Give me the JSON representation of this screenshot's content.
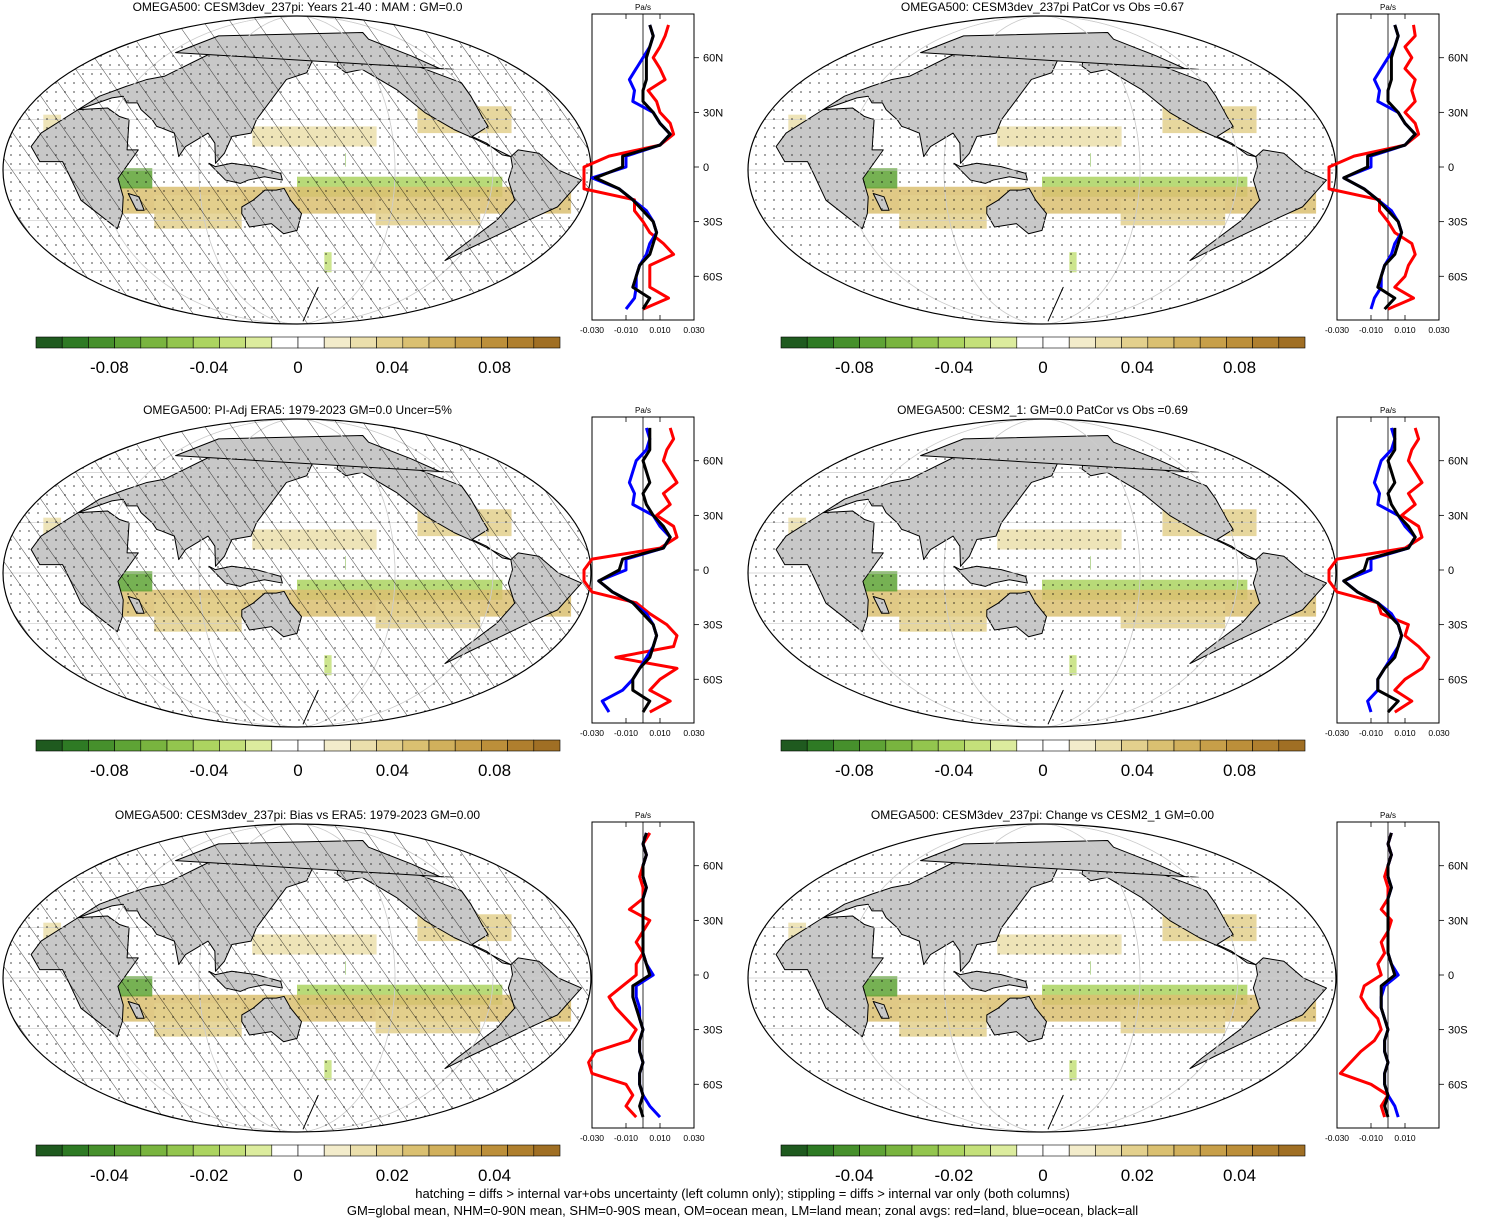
{
  "colors": {
    "land": "#c8c8c8",
    "ocean": "#ffffff",
    "zonal_land": "#ff0000",
    "zonal_ocean": "#0000ff",
    "zonal_all": "#000000",
    "scale_main": [
      "#1f5a1f",
      "#2e7a24",
      "#46902c",
      "#5ea335",
      "#79b43f",
      "#93c54e",
      "#acd460",
      "#c4e07a",
      "#dcec9e",
      "#ffffff",
      "#ffffff",
      "#f3eccb",
      "#ebdfac",
      "#e3d08d",
      "#dac071",
      "#d1b05c",
      "#c79f49",
      "#bc8f3a",
      "#af7f2e",
      "#a06f24"
    ]
  },
  "footer": {
    "line1": "hatching = diffs > internal var+obs uncertainty (left column only); stippling = diffs > internal var only (both columns)",
    "line2": "GM=global mean, NHM=0-90N mean, SHM=0-90S mean, OM=ocean mean, LM=land mean; zonal avgs: red=land, blue=ocean, black=all"
  },
  "zonal_unit": "Pa/s",
  "lat_ticks": [
    "60N",
    "30N",
    "0",
    "30S",
    "60S"
  ],
  "chart_data": [
    {
      "type": "heatmap",
      "title": "OMEGA500: CESM3dev_237pi: Years 21-40 : MAM : GM=0.0",
      "colorbar_labels": [
        "-0.08",
        "-0.04",
        "0",
        "0.04",
        "0.08"
      ],
      "zonal_x_labels": [
        "-0.030",
        "-0.010",
        "0.010",
        "0.030"
      ],
      "hatched": true,
      "zonal": {
        "lat": [
          -78,
          -72,
          -66,
          -60,
          -54,
          -48,
          -42,
          -36,
          -30,
          -24,
          -18,
          -12,
          -6,
          0,
          6,
          12,
          18,
          24,
          30,
          36,
          42,
          48,
          54,
          60,
          66,
          72,
          78
        ],
        "land": [
          0.0,
          0.015,
          0.004,
          0.004,
          0.004,
          0.018,
          0.012,
          0.004,
          0.0,
          -0.005,
          -0.005,
          -0.045,
          -0.052,
          -0.04,
          -0.02,
          0.01,
          0.018,
          0.016,
          0.01,
          0.008,
          0.003,
          0.013,
          0.01,
          0.006,
          0.01,
          0.013,
          0.015
        ],
        "ocean": [
          -0.01,
          -0.005,
          -0.004,
          -0.004,
          -0.002,
          0.002,
          0.004,
          0.008,
          0.006,
          0.002,
          -0.006,
          -0.014,
          -0.03,
          -0.01,
          -0.01,
          0.01,
          0.016,
          0.01,
          0.006,
          -0.006,
          -0.005,
          -0.008,
          -0.004,
          0.0,
          0.004,
          0.006,
          0.004
        ],
        "all": [
          0.0,
          0.004,
          -0.006,
          -0.004,
          -0.002,
          0.004,
          0.006,
          0.008,
          0.006,
          0.0,
          -0.006,
          -0.014,
          -0.028,
          -0.012,
          -0.012,
          0.01,
          0.016,
          0.01,
          0.006,
          0.0,
          0.0,
          0.002,
          0.002,
          0.002,
          0.004,
          0.006,
          0.004
        ]
      }
    },
    {
      "type": "heatmap",
      "title": "OMEGA500: CESM3dev_237pi PatCor vs Obs =0.67",
      "colorbar_labels": [
        "-0.08",
        "-0.04",
        "0",
        "0.04",
        "0.08"
      ],
      "zonal_x_labels": [
        "-0.030",
        "-0.010",
        "0.010",
        "0.030"
      ],
      "hatched": false,
      "zonal": {
        "lat": [
          -78,
          -72,
          -66,
          -60,
          -54,
          -48,
          -42,
          -36,
          -30,
          -24,
          -18,
          -12,
          -6,
          0,
          6,
          12,
          18,
          24,
          30,
          36,
          42,
          48,
          54,
          60,
          66,
          72,
          78
        ],
        "land": [
          0.0,
          0.015,
          0.004,
          0.01,
          0.012,
          0.016,
          0.014,
          0.004,
          0.0,
          -0.005,
          -0.005,
          -0.045,
          -0.06,
          -0.045,
          -0.02,
          0.01,
          0.018,
          0.016,
          0.01,
          0.016,
          0.014,
          0.016,
          0.01,
          0.014,
          0.01,
          0.016,
          0.015
        ],
        "ocean": [
          -0.01,
          -0.008,
          -0.004,
          -0.004,
          -0.002,
          0.002,
          0.004,
          0.008,
          0.006,
          0.002,
          -0.006,
          -0.014,
          -0.026,
          -0.01,
          -0.01,
          0.01,
          0.016,
          0.01,
          0.006,
          -0.006,
          -0.005,
          -0.008,
          -0.004,
          0.0,
          0.004,
          0.006,
          0.004
        ],
        "all": [
          -0.002,
          0.004,
          -0.006,
          -0.004,
          -0.002,
          0.004,
          0.006,
          0.008,
          0.006,
          0.0,
          -0.006,
          -0.014,
          -0.026,
          -0.012,
          -0.012,
          0.01,
          0.016,
          0.01,
          0.006,
          0.0,
          0.0,
          0.002,
          0.002,
          0.002,
          0.004,
          0.006,
          0.004
        ]
      }
    },
    {
      "type": "heatmap",
      "title": "OMEGA500: PI-Adj ERA5: 1979-2023 GM=0.0 Uncer=5%",
      "colorbar_labels": [
        "-0.08",
        "-0.04",
        "0",
        "0.04",
        "0.08"
      ],
      "zonal_x_labels": [
        "-0.030",
        "-0.010",
        "0.010",
        "0.030"
      ],
      "hatched": true,
      "zonal": {
        "lat": [
          -78,
          -72,
          -66,
          -60,
          -54,
          -48,
          -42,
          -36,
          -30,
          -24,
          -18,
          -12,
          -6,
          0,
          6,
          12,
          18,
          24,
          30,
          36,
          42,
          48,
          54,
          60,
          66,
          72,
          78
        ],
        "land": [
          0.004,
          0.016,
          0.004,
          0.01,
          0.02,
          -0.016,
          0.018,
          0.02,
          0.014,
          0.004,
          -0.004,
          -0.03,
          -0.05,
          -0.05,
          -0.03,
          0.01,
          0.02,
          0.018,
          0.008,
          0.016,
          0.012,
          0.02,
          0.016,
          0.012,
          0.014,
          0.018,
          0.016
        ],
        "ocean": [
          -0.02,
          -0.024,
          -0.012,
          -0.006,
          -0.002,
          0.002,
          0.006,
          0.008,
          0.006,
          0.002,
          -0.006,
          -0.018,
          -0.026,
          -0.01,
          -0.01,
          0.012,
          0.016,
          0.01,
          0.006,
          -0.006,
          -0.005,
          -0.008,
          -0.006,
          -0.004,
          0.002,
          0.004,
          0.002
        ],
        "all": [
          0.0,
          0.004,
          -0.006,
          -0.006,
          -0.002,
          0.004,
          0.006,
          0.008,
          0.006,
          0.0,
          -0.006,
          -0.018,
          -0.026,
          -0.014,
          -0.012,
          0.012,
          0.016,
          0.012,
          0.006,
          0.002,
          0.0,
          0.004,
          0.002,
          0.0,
          0.004,
          0.004,
          0.004
        ]
      }
    },
    {
      "type": "heatmap",
      "title": "OMEGA500: CESM2_1: GM=0.0 PatCor vs Obs =0.69",
      "colorbar_labels": [
        "-0.08",
        "-0.04",
        "0",
        "0.04",
        "0.08"
      ],
      "zonal_x_labels": [
        "-0.030",
        "-0.010",
        "0.010",
        "0.030"
      ],
      "hatched": false,
      "zonal": {
        "lat": [
          -78,
          -72,
          -66,
          -60,
          -54,
          -48,
          -42,
          -36,
          -30,
          -24,
          -18,
          -12,
          -6,
          0,
          6,
          12,
          18,
          24,
          30,
          36,
          42,
          48,
          54,
          60,
          66,
          72,
          78
        ],
        "land": [
          0.004,
          0.014,
          0.004,
          0.01,
          0.02,
          0.024,
          0.018,
          0.01,
          0.012,
          -0.004,
          -0.006,
          -0.03,
          -0.05,
          -0.045,
          -0.03,
          0.01,
          0.02,
          0.018,
          0.008,
          0.016,
          0.012,
          0.02,
          0.016,
          0.012,
          0.014,
          0.018,
          0.016
        ],
        "ocean": [
          -0.01,
          -0.012,
          -0.006,
          -0.006,
          -0.002,
          0.002,
          0.006,
          0.008,
          0.006,
          0.002,
          -0.006,
          -0.018,
          -0.026,
          -0.01,
          -0.01,
          0.012,
          0.016,
          0.01,
          0.006,
          -0.006,
          -0.005,
          -0.008,
          -0.006,
          -0.004,
          0.002,
          0.004,
          0.002
        ],
        "all": [
          0.0,
          0.006,
          -0.006,
          -0.006,
          -0.002,
          0.004,
          0.006,
          0.008,
          0.006,
          0.0,
          -0.006,
          -0.018,
          -0.026,
          -0.014,
          -0.012,
          0.012,
          0.016,
          0.012,
          0.006,
          0.002,
          0.0,
          0.004,
          0.002,
          0.0,
          0.004,
          0.004,
          0.004
        ]
      }
    },
    {
      "type": "heatmap",
      "title": "OMEGA500: CESM3dev_237pi: Bias vs ERA5: 1979-2023 GM=0.00",
      "colorbar_labels": [
        "-0.04",
        "-0.02",
        "0",
        "0.02",
        "0.04"
      ],
      "zonal_x_labels": [
        "-0.030",
        "-0.010",
        "0.010",
        "0.030"
      ],
      "hatched": true,
      "zonal": {
        "lat": [
          -78,
          -72,
          -66,
          -60,
          -54,
          -48,
          -42,
          -36,
          -30,
          -24,
          -18,
          -12,
          -6,
          0,
          6,
          12,
          18,
          24,
          30,
          36,
          42,
          48,
          54,
          60,
          66,
          72,
          78
        ],
        "land": [
          -0.004,
          -0.01,
          -0.006,
          -0.01,
          -0.03,
          -0.032,
          -0.028,
          -0.008,
          -0.004,
          -0.01,
          -0.016,
          -0.02,
          -0.012,
          -0.004,
          -0.004,
          0.0,
          -0.004,
          0.0,
          0.004,
          -0.008,
          0.0,
          0.0,
          -0.002,
          0.0,
          0.002,
          0.0,
          0.004
        ],
        "ocean": [
          0.01,
          0.004,
          0.0,
          -0.002,
          -0.002,
          0.0,
          -0.002,
          -0.002,
          0.0,
          -0.002,
          -0.002,
          -0.004,
          -0.004,
          0.006,
          0.002,
          0.0,
          0.0,
          0.0,
          0.0,
          0.0,
          0.0,
          0.002,
          0.0,
          0.0,
          0.002,
          0.0,
          0.002
        ],
        "all": [
          0.0,
          -0.002,
          0.0,
          -0.002,
          -0.002,
          0.0,
          -0.002,
          -0.002,
          0.0,
          -0.002,
          -0.004,
          -0.006,
          -0.006,
          0.004,
          0.002,
          0.0,
          0.0,
          0.0,
          0.0,
          0.0,
          0.0,
          0.002,
          0.0,
          0.0,
          0.002,
          0.0,
          0.002
        ]
      }
    },
    {
      "type": "heatmap",
      "title": "OMEGA500: CESM3dev_237pi: Change vs CESM2_1 GM=0.00",
      "colorbar_labels": [
        "-0.04",
        "-0.02",
        "0",
        "0.02",
        "0.04"
      ],
      "zonal_x_labels": [
        "-0.030",
        "-0.010",
        "0.010"
      ],
      "hatched": false,
      "zonal": {
        "lat": [
          -78,
          -72,
          -66,
          -60,
          -54,
          -48,
          -42,
          -36,
          -30,
          -24,
          -18,
          -12,
          -6,
          0,
          6,
          12,
          18,
          24,
          30,
          36,
          42,
          48,
          54,
          60,
          66,
          72,
          78
        ],
        "land": [
          -0.002,
          -0.004,
          0.0,
          -0.01,
          -0.028,
          -0.022,
          -0.016,
          -0.008,
          -0.004,
          -0.006,
          -0.012,
          -0.016,
          -0.014,
          -0.004,
          -0.006,
          -0.002,
          -0.004,
          0.0,
          0.002,
          -0.004,
          0.0,
          0.0,
          -0.002,
          0.0,
          0.002,
          0.0,
          0.002
        ],
        "ocean": [
          0.006,
          0.004,
          0.0,
          -0.002,
          -0.002,
          0.0,
          -0.002,
          -0.002,
          0.0,
          -0.002,
          -0.004,
          -0.004,
          -0.002,
          0.006,
          0.002,
          0.0,
          0.0,
          0.0,
          0.0,
          0.0,
          0.0,
          0.002,
          0.0,
          0.0,
          0.002,
          0.0,
          0.002
        ],
        "all": [
          0.0,
          -0.002,
          0.0,
          -0.002,
          -0.002,
          0.0,
          -0.002,
          -0.002,
          0.0,
          -0.002,
          -0.004,
          -0.004,
          -0.004,
          0.004,
          0.002,
          0.0,
          0.0,
          0.0,
          0.0,
          0.0,
          0.0,
          0.002,
          0.0,
          0.0,
          0.002,
          0.0,
          0.002
        ]
      }
    }
  ]
}
